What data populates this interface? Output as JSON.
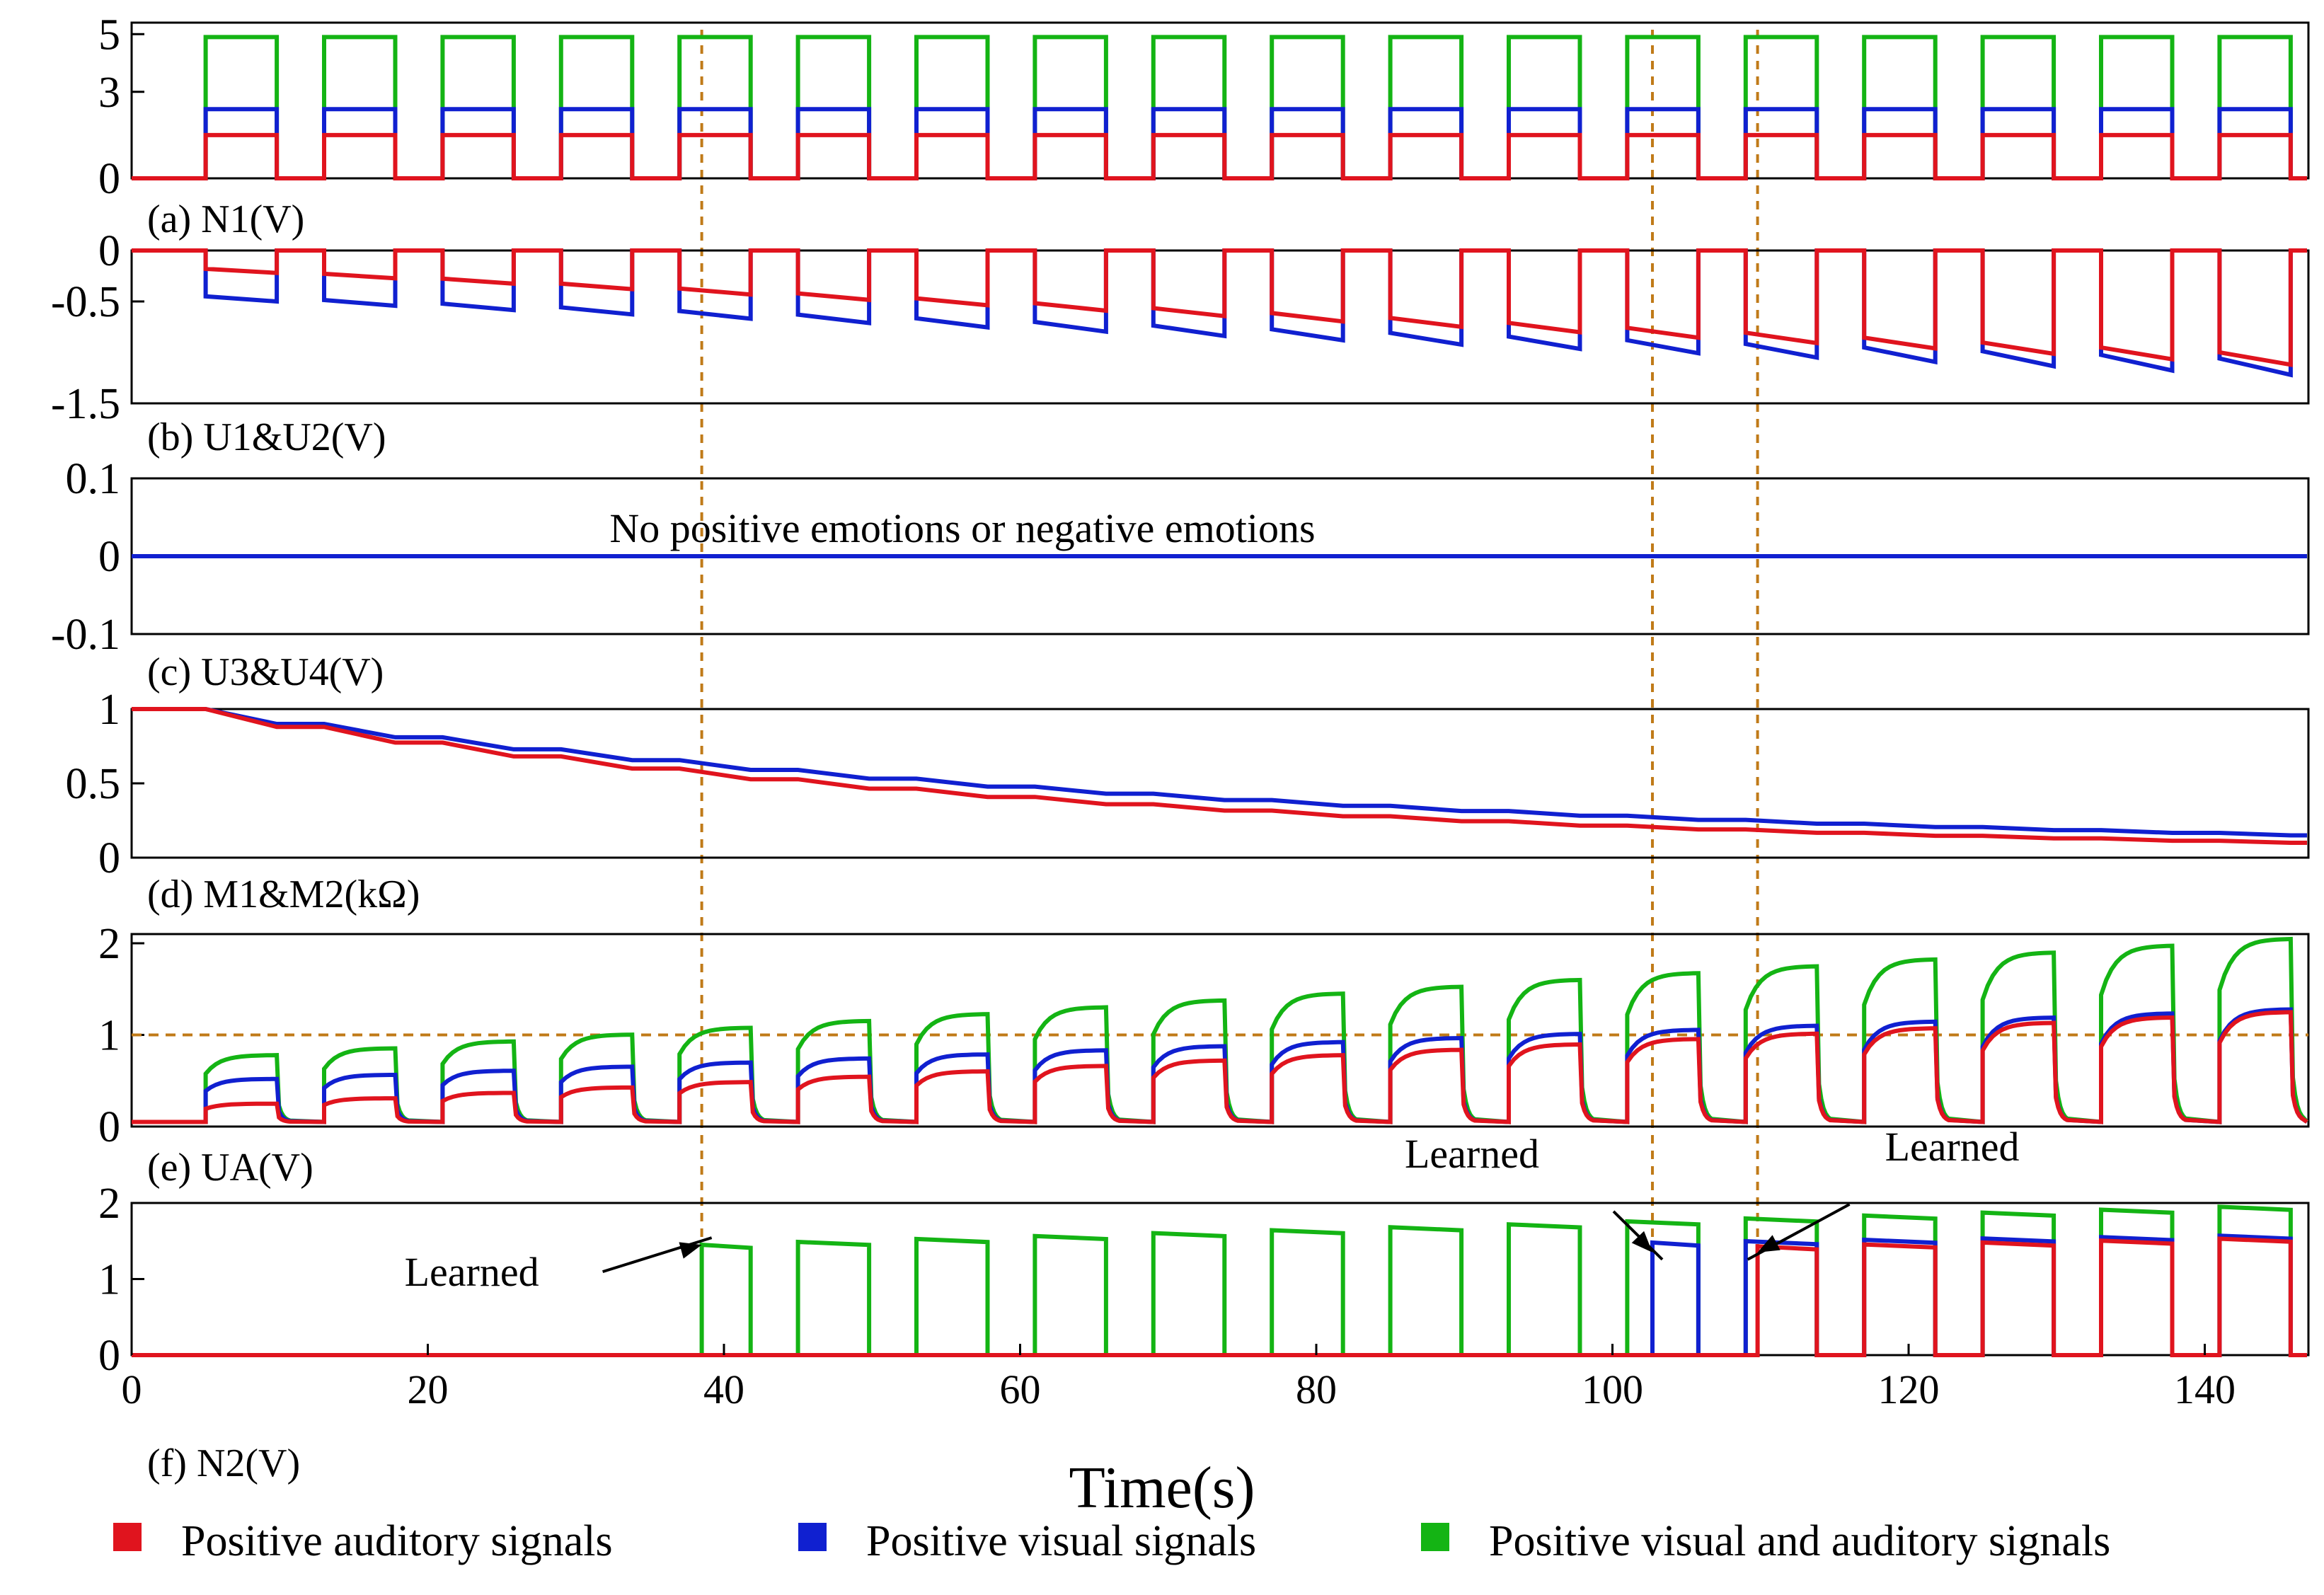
{
  "chart_data": {
    "type": "line",
    "title": "",
    "xlabel": "Time(s)",
    "xlim": [
      0,
      147
    ],
    "x_ticks": [
      "0",
      "20",
      "40",
      "60",
      "80",
      "100",
      "120",
      "140"
    ],
    "pulse_period_s": 8,
    "pulse_on_s": 4.8,
    "pulse_offset_s": 5,
    "reference_lines_x_s": [
      38.5,
      102.7,
      109.8
    ],
    "colors": {
      "auditory": "#e0141e",
      "visual": "#1020d0",
      "visual_auditory": "#14b414",
      "reference": "#c07a18",
      "axis": "#000000"
    },
    "legend": [
      {
        "key": "auditory",
        "label": "Positive auditory signals"
      },
      {
        "key": "visual",
        "label": "Positive visual signals"
      },
      {
        "key": "visual_auditory",
        "label": "Positive visual and auditory  signals"
      }
    ],
    "panels": [
      {
        "id": "a",
        "label": "(a)  N1(V)",
        "ylim": [
          0,
          5.4
        ],
        "y_ticks": [
          {
            "value": 5,
            "label": "5"
          },
          {
            "value": 3,
            "label": "3"
          },
          {
            "value": 0,
            "label": "0"
          }
        ],
        "series": [
          {
            "key": "visual_auditory",
            "pulse_low": 0,
            "pulse_high": 4.9
          },
          {
            "key": "visual",
            "pulse_low": 0,
            "pulse_high": 2.4
          },
          {
            "key": "auditory",
            "pulse_low": 0,
            "pulse_high": 1.5
          }
        ]
      },
      {
        "id": "b",
        "label": "(b)  U1&U2(V)",
        "ylim": [
          -1.5,
          0
        ],
        "y_ticks": [
          {
            "value": 0,
            "label": "0"
          },
          {
            "value": -0.5,
            "label": "-0.5"
          },
          {
            "value": -1.5,
            "label": "-1.5"
          }
        ],
        "series": [
          {
            "key": "visual",
            "start": [
              -0.45,
              -0.5
            ],
            "end": [
              -1.06,
              -1.22
            ]
          },
          {
            "key": "auditory",
            "start": [
              -0.18,
              -0.22
            ],
            "end": [
              -1.0,
              -1.12
            ]
          }
        ]
      },
      {
        "id": "c",
        "label": "(c)  U3&U4(V)",
        "ylim": [
          -0.1,
          0.1
        ],
        "y_ticks": [
          {
            "value": 0.1,
            "label": "0.1"
          },
          {
            "value": 0,
            "label": "0"
          },
          {
            "value": -0.1,
            "label": "-0.1"
          }
        ],
        "annotation": "No positive emotions or negative emotions",
        "series": [
          {
            "key": "auditory",
            "constant": 0
          },
          {
            "key": "visual",
            "constant": 0
          }
        ]
      },
      {
        "id": "d",
        "label": "(d)  M1&M2(kΩ)",
        "ylim": [
          0,
          1
        ],
        "y_ticks": [
          {
            "value": 1,
            "label": "1"
          },
          {
            "value": 0.5,
            "label": "0.5"
          },
          {
            "value": 0,
            "label": "0"
          }
        ],
        "series": [
          {
            "key": "visual",
            "initial": 1.0,
            "step_factor": 0.9
          },
          {
            "key": "auditory",
            "initial": 1.0,
            "step_factor": 0.88
          }
        ]
      },
      {
        "id": "e",
        "label": "(e)  UA(V)",
        "ylim": [
          0,
          2.1
        ],
        "y_ticks": [
          {
            "value": 2,
            "label": "2"
          },
          {
            "value": 1,
            "label": "1"
          },
          {
            "value": 0,
            "label": "0"
          }
        ],
        "threshold": 1,
        "series": [
          {
            "key": "visual_auditory",
            "first_peak": 0.78,
            "last_peak": 2.05
          },
          {
            "key": "visual",
            "first_peak": 0.52,
            "last_peak": 1.28
          },
          {
            "key": "auditory",
            "first_peak": 0.25,
            "last_peak": 1.25
          }
        ]
      },
      {
        "id": "f",
        "label": "(f)  N2(V)",
        "ylim": [
          0,
          2
        ],
        "y_ticks": [
          {
            "value": 2,
            "label": "2"
          },
          {
            "value": 1,
            "label": "1"
          },
          {
            "value": 0,
            "label": "0"
          }
        ],
        "series": [
          {
            "key": "visual_auditory",
            "learned_at_s": 38.5,
            "start_level": 1.45,
            "end_level": 1.95
          },
          {
            "key": "visual",
            "learned_at_s": 102.7,
            "start_level": 1.48,
            "end_level": 1.57
          },
          {
            "key": "auditory",
            "learned_at_s": 109.8,
            "start_level": 1.43,
            "end_level": 1.53
          }
        ],
        "annotations": [
          {
            "text": "Learned",
            "target_x": 38.5,
            "target_y": 1.45
          },
          {
            "text": "Learned",
            "target_x": 102.7,
            "target_y": 1.35
          },
          {
            "text": "Learned",
            "target_x": 109.8,
            "target_y": 1.35
          }
        ]
      }
    ]
  }
}
